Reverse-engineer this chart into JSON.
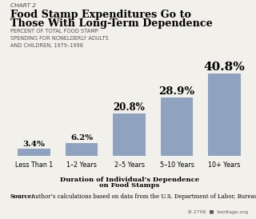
{
  "chart_label": "CHART 2",
  "title_line1": "Food Stamp Expenditures Go to",
  "title_line2": "Those With Long-Term Dependence",
  "subtitle": "PERCENT OF TOTAL FOOD STAMP\nSPENDING FOR NONELDERLY ADULTS\nAND CHILDREN, 1979–1998",
  "categories": [
    "Less Than 1",
    "1–2 Years",
    "2–5 Years",
    "5–10 Years",
    "10+ Years"
  ],
  "values": [
    3.4,
    6.2,
    20.8,
    28.9,
    40.8
  ],
  "bar_color": "#8fa3c0",
  "xlabel_line1": "Duration of Individual’s Dependence",
  "xlabel_line2": "on Food Stamps",
  "source_bold": "Source:",
  "source_text": " Author’s calculations based on data from the U.S. Department of Labor, Bureau of Labor Statistics.",
  "footnote": "B 2708  ■  heritage.org",
  "background_color": "#f2f0eb",
  "ylim": [
    0,
    47
  ]
}
